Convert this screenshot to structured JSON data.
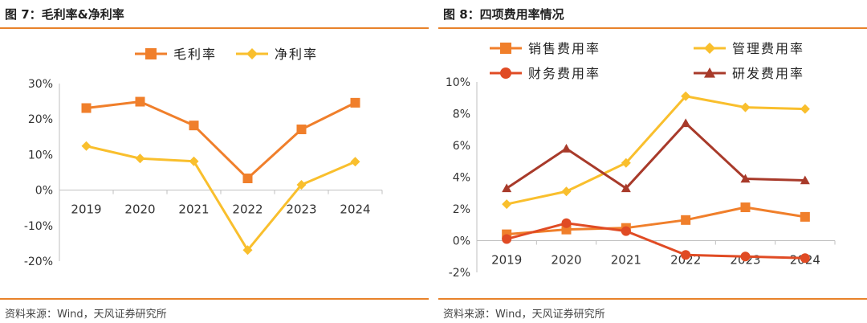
{
  "charts": [
    {
      "title": "图 7：毛利率&净利率",
      "source": "资料来源：Wind，天风证券研究所",
      "chart_data": {
        "type": "line",
        "categories": [
          "2019",
          "2020",
          "2021",
          "2022",
          "2023",
          "2024"
        ],
        "yticks": [
          "30%",
          "20%",
          "10%",
          "0%",
          "-10%",
          "-20%"
        ],
        "ylim": [
          -20,
          30
        ],
        "legend_position": "top",
        "series": [
          {
            "name": "毛利率",
            "color": "#f07f2b",
            "marker": "square",
            "values": [
              23.1,
              24.9,
              18.2,
              3.3,
              17.1,
              24.6
            ]
          },
          {
            "name": "净利率",
            "color": "#f9bf2d",
            "marker": "diamond",
            "values": [
              12.4,
              8.9,
              8.1,
              -16.9,
              1.5,
              8.0
            ]
          }
        ]
      }
    },
    {
      "title": "图 8：四项费用率情况",
      "source": "资料来源：Wind，天风证券研究所",
      "chart_data": {
        "type": "line",
        "categories": [
          "2019",
          "2020",
          "2021",
          "2022",
          "2023",
          "2024"
        ],
        "yticks": [
          "10%",
          "8%",
          "6%",
          "4%",
          "2%",
          "0%",
          "-2%"
        ],
        "ylim": [
          -2,
          10
        ],
        "legend_position": "top",
        "series": [
          {
            "name": "销售费用率",
            "color": "#f07f2b",
            "marker": "square",
            "values": [
              0.4,
              0.7,
              0.8,
              1.3,
              2.1,
              1.5
            ]
          },
          {
            "name": "管理费用率",
            "color": "#f9bf2d",
            "marker": "diamond",
            "values": [
              2.3,
              3.1,
              4.9,
              9.1,
              8.4,
              8.3
            ]
          },
          {
            "name": "财务费用率",
            "color": "#e04b24",
            "marker": "circle",
            "values": [
              0.1,
              1.1,
              0.6,
              -0.9,
              -1.0,
              -1.1
            ]
          },
          {
            "name": "研发费用率",
            "color": "#a83a2a",
            "marker": "triangle",
            "values": [
              3.3,
              5.8,
              3.3,
              7.4,
              3.9,
              3.8
            ]
          }
        ]
      }
    }
  ]
}
